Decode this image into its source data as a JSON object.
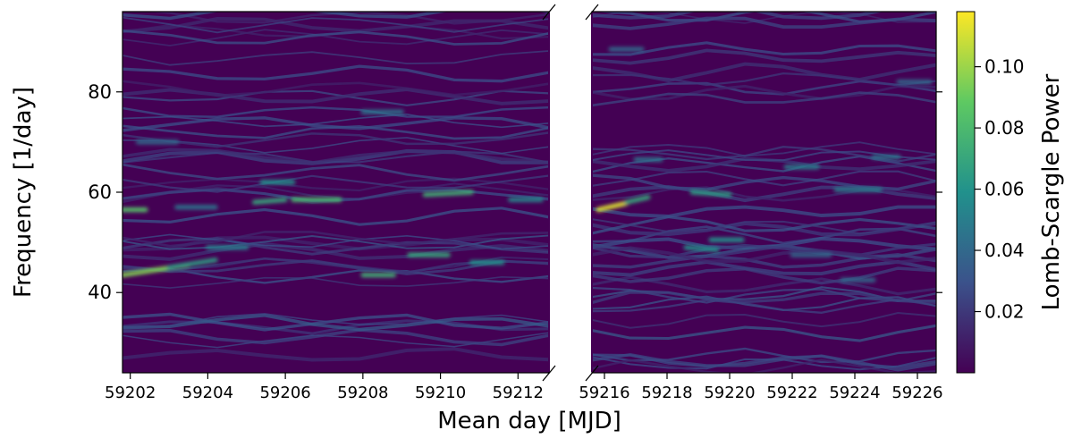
{
  "chart_data": {
    "type": "heatmap",
    "title": "",
    "xlabel": "Mean day [MJD]",
    "ylabel": "Frequency [1/day]",
    "colorbar_label": "Lomb-Scargle Power",
    "colormap": "viridis",
    "colormap_stops": [
      "#440154",
      "#3b528b",
      "#21918c",
      "#5ec962",
      "#fde725"
    ],
    "background_color": "#440154",
    "ylim": [
      24,
      96
    ],
    "yticks": [
      40,
      60,
      80
    ],
    "power_range": [
      0.0,
      0.118
    ],
    "colorbar_ticks": [
      0.02,
      0.04,
      0.06,
      0.08,
      0.1
    ],
    "colorbar_tick_labels": [
      "0.02",
      "0.04",
      "0.06",
      "0.08",
      "0.10"
    ],
    "panels": [
      {
        "name": "left",
        "xlim": [
          59201.8,
          59212.8
        ],
        "xticks": [
          59202,
          59204,
          59206,
          59208,
          59210,
          59212
        ],
        "xtick_labels": [
          "59202",
          "59204",
          "59206",
          "59208",
          "59210",
          "59212"
        ],
        "features": [
          {
            "x0": 59201.8,
            "x1": 59203.5,
            "y0": 43.5,
            "y1": 45.5,
            "power": 0.095
          },
          {
            "x0": 59203.0,
            "x1": 59204.2,
            "y0": 45.0,
            "y1": 46.5,
            "power": 0.065
          },
          {
            "x0": 59201.8,
            "x1": 59202.4,
            "y0": 56.5,
            "y1": 56.5,
            "power": 0.085
          },
          {
            "x0": 59205.2,
            "x1": 59206.0,
            "y0": 58.0,
            "y1": 58.5,
            "power": 0.07
          },
          {
            "x0": 59206.2,
            "x1": 59207.4,
            "y0": 58.5,
            "y1": 58.5,
            "power": 0.08
          },
          {
            "x0": 59205.4,
            "x1": 59206.2,
            "y0": 62.0,
            "y1": 62.0,
            "power": 0.06
          },
          {
            "x0": 59208.0,
            "x1": 59208.8,
            "y0": 43.5,
            "y1": 43.5,
            "power": 0.075
          },
          {
            "x0": 59209.2,
            "x1": 59210.2,
            "y0": 47.5,
            "y1": 47.5,
            "power": 0.07
          },
          {
            "x0": 59209.6,
            "x1": 59210.8,
            "y0": 59.5,
            "y1": 60.0,
            "power": 0.075
          },
          {
            "x0": 59210.8,
            "x1": 59211.6,
            "y0": 46.0,
            "y1": 46.0,
            "power": 0.06
          },
          {
            "x0": 59208.0,
            "x1": 59209.0,
            "y0": 76.0,
            "y1": 76.0,
            "power": 0.045
          },
          {
            "x0": 59204.0,
            "x1": 59205.0,
            "y0": 49.0,
            "y1": 49.0,
            "power": 0.05
          },
          {
            "x0": 59211.8,
            "x1": 59212.6,
            "y0": 58.5,
            "y1": 58.5,
            "power": 0.055
          },
          {
            "x0": 59202.2,
            "x1": 59203.2,
            "y0": 70.0,
            "y1": 70.0,
            "power": 0.04
          },
          {
            "x0": 59203.2,
            "x1": 59204.2,
            "y0": 57.0,
            "y1": 57.0,
            "power": 0.045
          }
        ]
      },
      {
        "name": "right",
        "xlim": [
          59215.6,
          59226.6
        ],
        "xticks": [
          59216,
          59218,
          59220,
          59222,
          59224,
          59226
        ],
        "xtick_labels": [
          "59216",
          "59218",
          "59220",
          "59222",
          "59224",
          "59226"
        ],
        "features": [
          {
            "x0": 59215.8,
            "x1": 59216.7,
            "y0": 56.5,
            "y1": 57.8,
            "power": 0.112
          },
          {
            "x0": 59216.7,
            "x1": 59217.4,
            "y0": 58.0,
            "y1": 59.0,
            "power": 0.07
          },
          {
            "x0": 59218.8,
            "x1": 59220.0,
            "y0": 60.0,
            "y1": 59.5,
            "power": 0.065
          },
          {
            "x0": 59218.6,
            "x1": 59219.6,
            "y0": 49.0,
            "y1": 48.5,
            "power": 0.06
          },
          {
            "x0": 59219.4,
            "x1": 59220.4,
            "y0": 50.5,
            "y1": 50.5,
            "power": 0.06
          },
          {
            "x0": 59221.8,
            "x1": 59222.8,
            "y0": 65.0,
            "y1": 65.0,
            "power": 0.05
          },
          {
            "x0": 59223.4,
            "x1": 59224.8,
            "y0": 60.5,
            "y1": 60.5,
            "power": 0.05
          },
          {
            "x0": 59224.6,
            "x1": 59225.4,
            "y0": 67.0,
            "y1": 67.0,
            "power": 0.045
          },
          {
            "x0": 59217.0,
            "x1": 59217.8,
            "y0": 66.5,
            "y1": 66.5,
            "power": 0.045
          },
          {
            "x0": 59225.4,
            "x1": 59226.4,
            "y0": 82.0,
            "y1": 82.0,
            "power": 0.04
          },
          {
            "x0": 59216.2,
            "x1": 59217.2,
            "y0": 88.5,
            "y1": 88.5,
            "power": 0.04
          },
          {
            "x0": 59222.0,
            "x1": 59223.2,
            "y0": 47.5,
            "y1": 47.5,
            "power": 0.04
          },
          {
            "x0": 59223.6,
            "x1": 59224.6,
            "y0": 42.5,
            "y1": 42.5,
            "power": 0.04
          }
        ]
      }
    ]
  }
}
